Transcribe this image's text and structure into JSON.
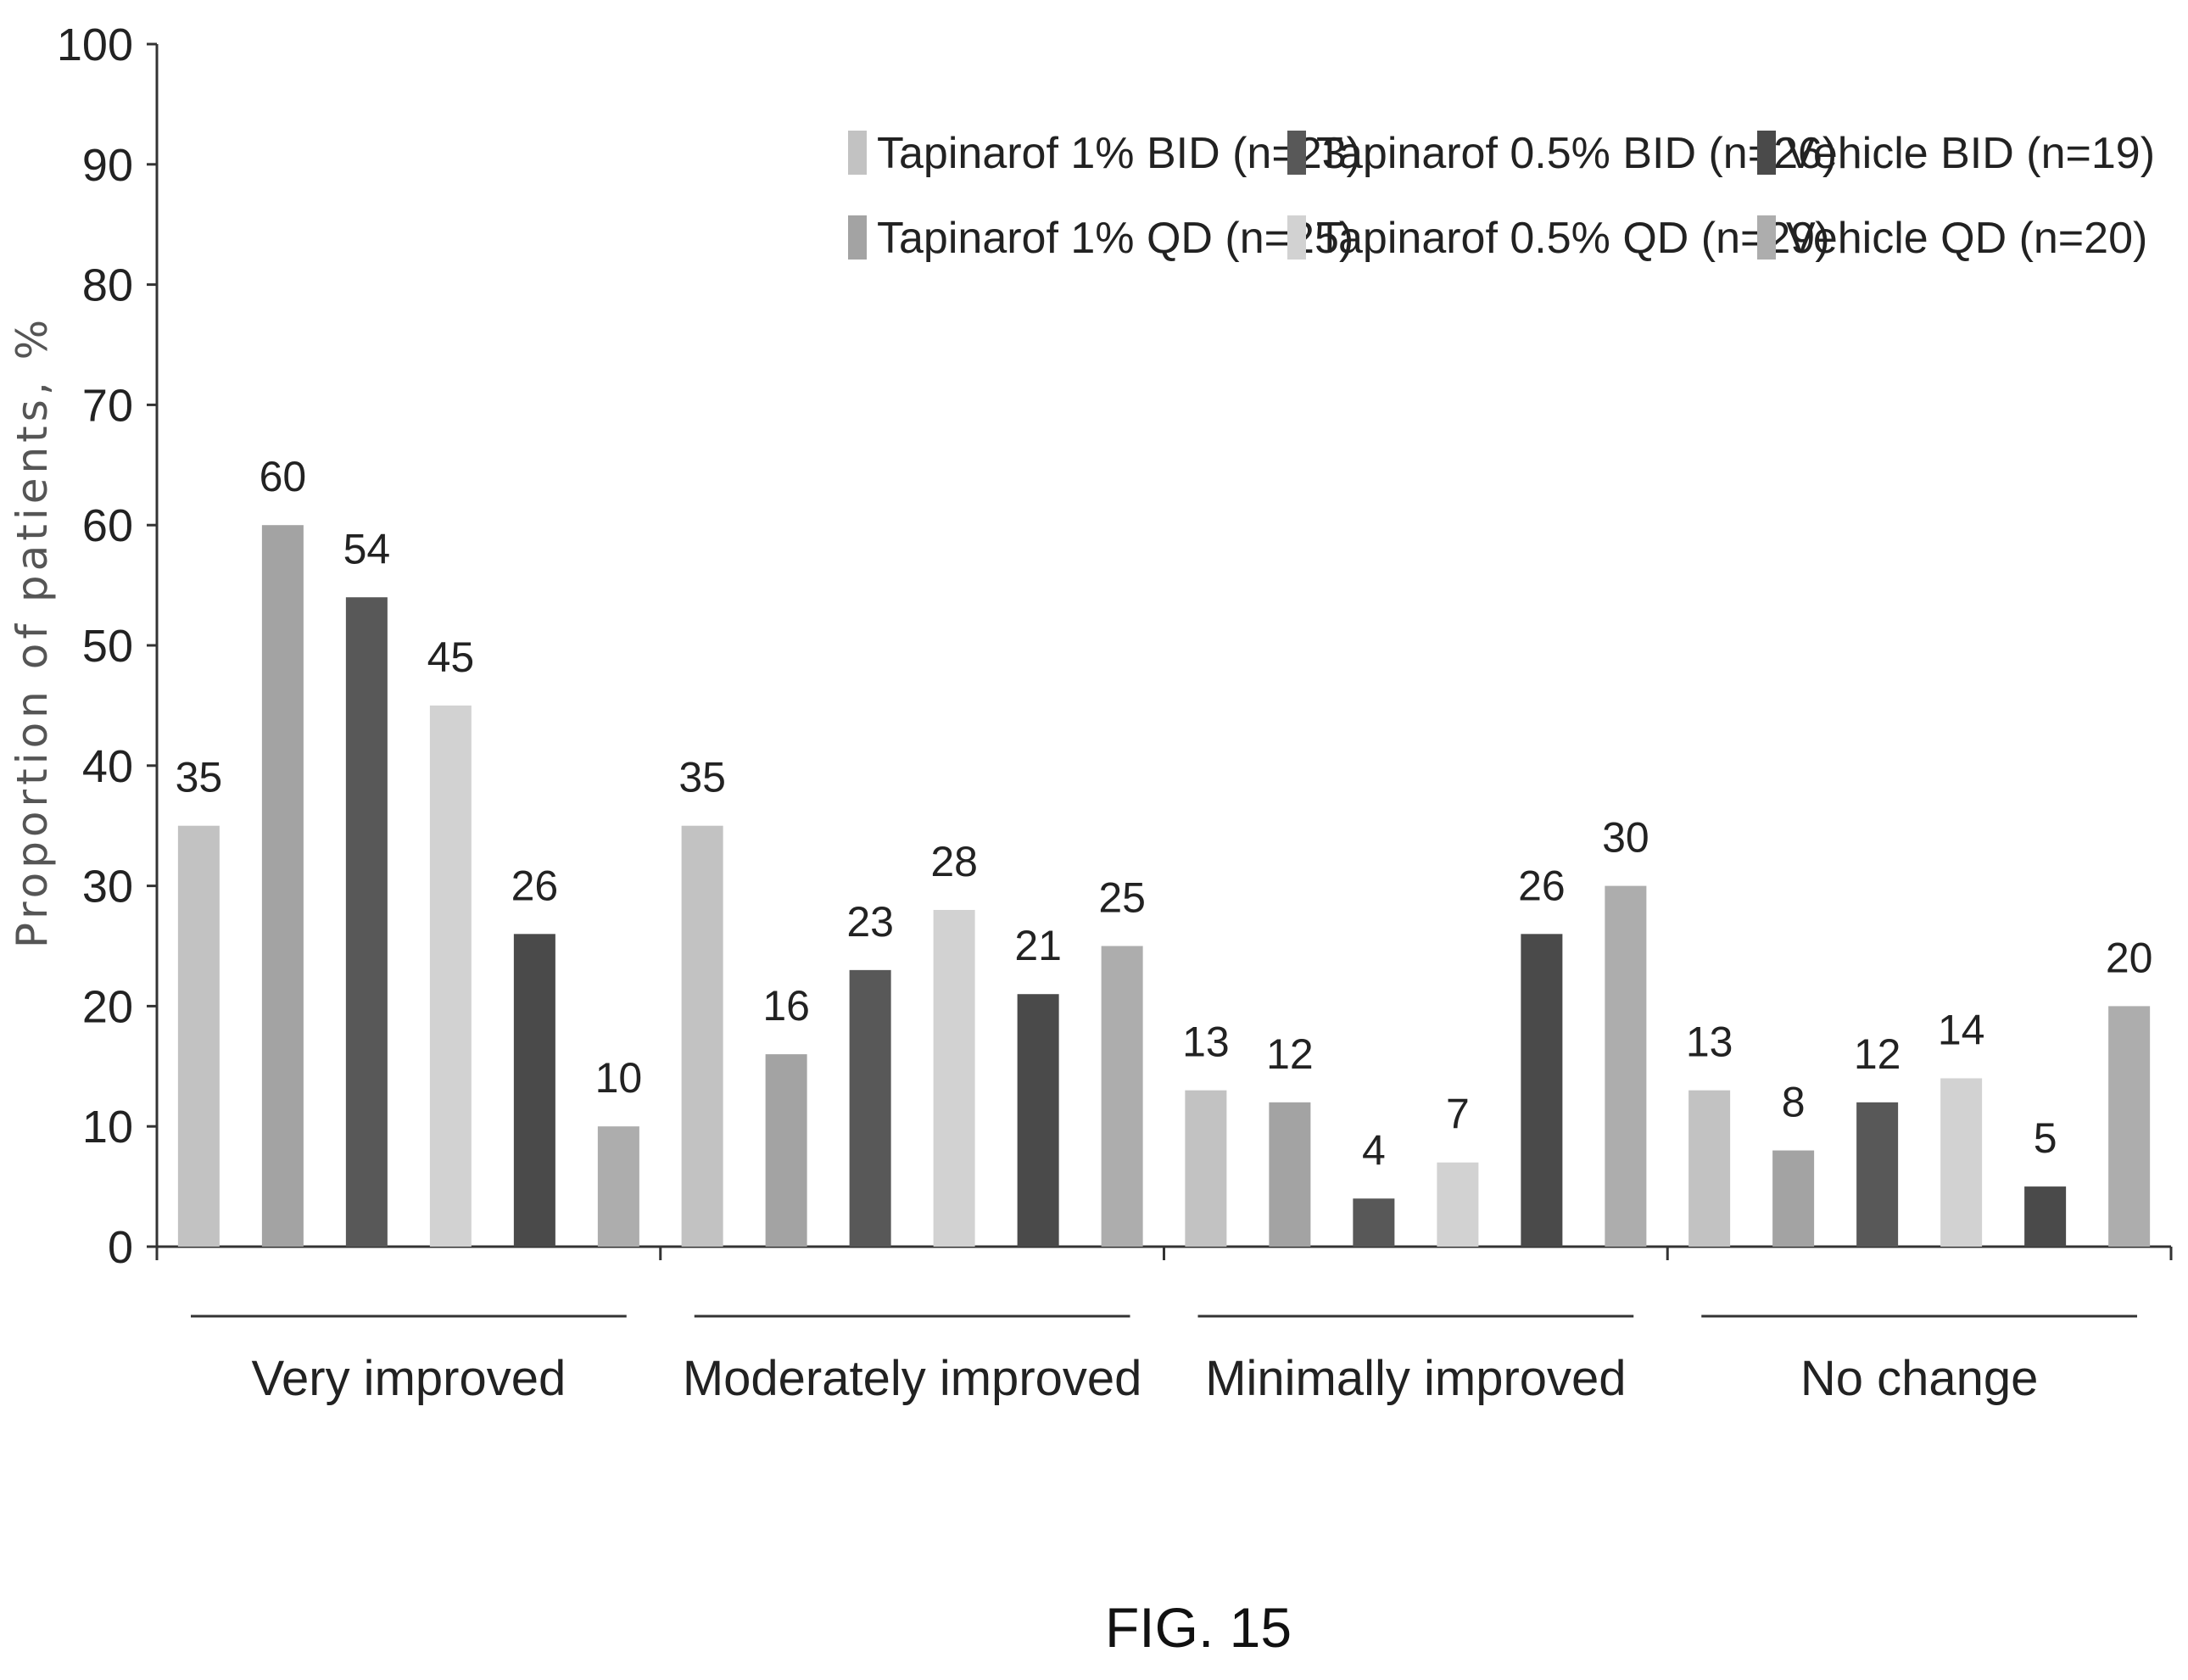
{
  "chart_data": {
    "type": "bar",
    "title": "",
    "xlabel": "",
    "ylabel": "Proportion of patients, %",
    "ylim": [
      0,
      100
    ],
    "yticks": [
      0,
      10,
      20,
      30,
      40,
      50,
      60,
      70,
      80,
      90,
      100
    ],
    "categories": [
      "Very improved",
      "Moderately improved",
      "Minimally improved",
      "No change"
    ],
    "series": [
      {
        "name": "Tapinarof 1% BID (n=23)",
        "color": "#c2c2c2",
        "values": [
          35,
          35,
          13,
          13
        ]
      },
      {
        "name": "Tapinarof 1% QD (n=25)",
        "color": "#a3a3a3",
        "values": [
          60,
          16,
          12,
          8
        ]
      },
      {
        "name": "Tapinarof 0.5% BID (n=26)",
        "color": "#585858",
        "values": [
          54,
          23,
          4,
          12
        ]
      },
      {
        "name": "Tapinarof 0.5% QD (n=29)",
        "color": "#d2d2d2",
        "values": [
          45,
          28,
          7,
          14
        ]
      },
      {
        "name": "Vehicle BID (n=19)",
        "color": "#4a4a4a",
        "values": [
          26,
          21,
          26,
          5
        ]
      },
      {
        "name": "Vehicle QD (n=20)",
        "color": "#adadad",
        "values": [
          10,
          25,
          30,
          20
        ]
      }
    ],
    "legend": {
      "position": "top-right",
      "columns": 3
    },
    "grid": false,
    "caption": "FIG. 15"
  }
}
